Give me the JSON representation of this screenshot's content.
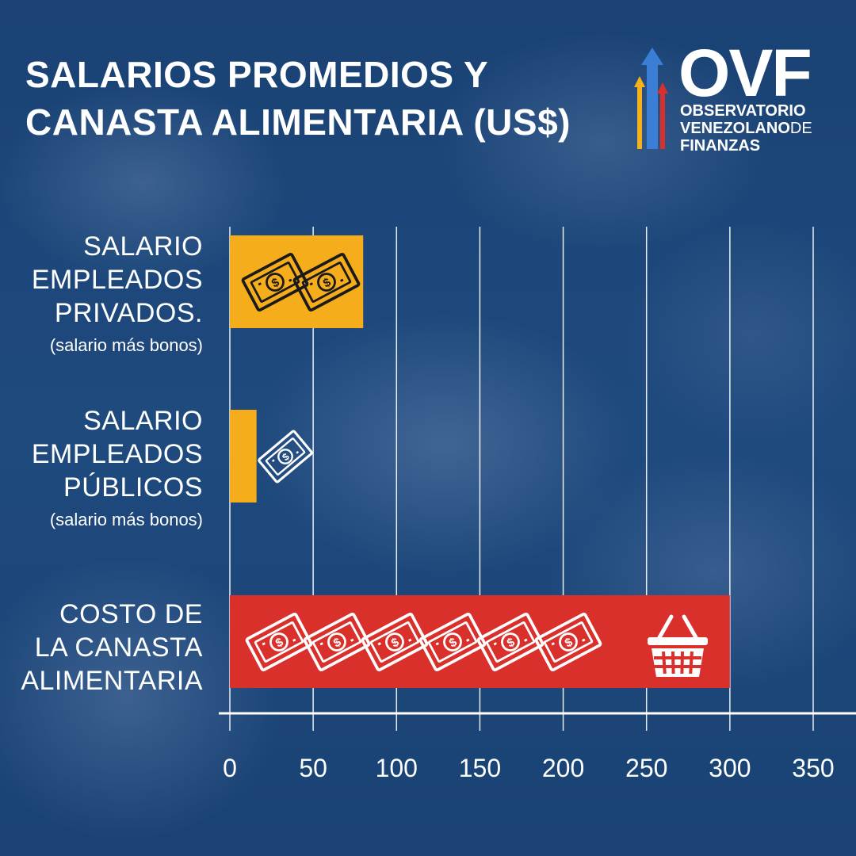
{
  "title": {
    "line1": "SALARIOS PROMEDIOS Y",
    "line2": "CANASTA ALIMENTARIA (US$)"
  },
  "logo": {
    "name": "OVF",
    "line1": "OBSERVATORIO",
    "line2_a": "VENEZOLANO",
    "line2_b": "DE",
    "line3": "FINANZAS",
    "arrow_colors": [
      "#f5b21a",
      "#3a7fd5",
      "#d9302c"
    ]
  },
  "categories": [
    {
      "lines": [
        "SALARIO",
        "EMPLEADOS",
        "PRIVADOS."
      ],
      "sub": "(salario más bonos)"
    },
    {
      "lines": [
        "SALARIO",
        "EMPLEADOS",
        "PÚBLICOS"
      ],
      "sub": "(salario más bonos)"
    },
    {
      "lines": [
        "COSTO DE",
        "LA CANASTA",
        "ALIMENTARIA"
      ],
      "sub": ""
    }
  ],
  "chart_data": {
    "type": "bar",
    "orientation": "horizontal",
    "title": "SALARIOS PROMEDIOS Y CANASTA ALIMENTARIA (US$)",
    "categories": [
      "SALARIO EMPLEADOS PRIVADOS. (salario más bonos)",
      "SALARIO EMPLEADOS PÚBLICOS (salario más bonos)",
      "COSTO DE LA CANASTA ALIMENTARIA"
    ],
    "values": [
      80,
      16,
      300
    ],
    "bar_colors": [
      "#f5ad1c",
      "#f5ad1c",
      "#d9302c"
    ],
    "bar_icons": [
      "money-icon",
      "money-icon",
      "money-icon"
    ],
    "icon_counts": [
      2,
      1,
      6
    ],
    "extra_icon": "basket-icon",
    "xlim": [
      0,
      350
    ],
    "xticks": [
      "0",
      "50",
      "100",
      "150",
      "200",
      "250",
      "300",
      "350"
    ],
    "grid": true,
    "xlabel": "",
    "ylabel": ""
  }
}
